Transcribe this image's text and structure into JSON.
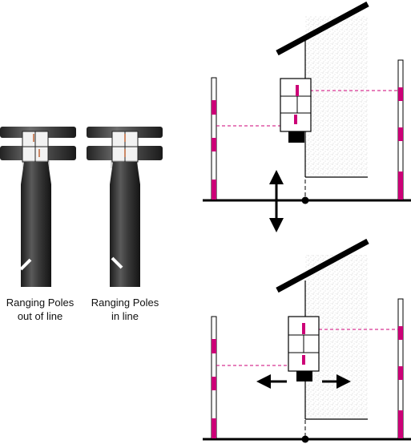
{
  "labels": {
    "out_of_line": [
      "Ranging Poles",
      "out of line"
    ],
    "in_line": [
      "Ranging Poles",
      "in line"
    ]
  },
  "colors": {
    "pole_marking": "#cc0077",
    "scope_body": "#2e2e2e",
    "reticle_magenta": "#cc0077",
    "sight_line": "#cc0077",
    "wall_stipple": "#c8c8c8",
    "ink": "#000000"
  },
  "icons": {
    "motion_vertical": "double-arrow-up-down-icon",
    "motion_horizontal": "double-arrow-left-right-icon"
  }
}
